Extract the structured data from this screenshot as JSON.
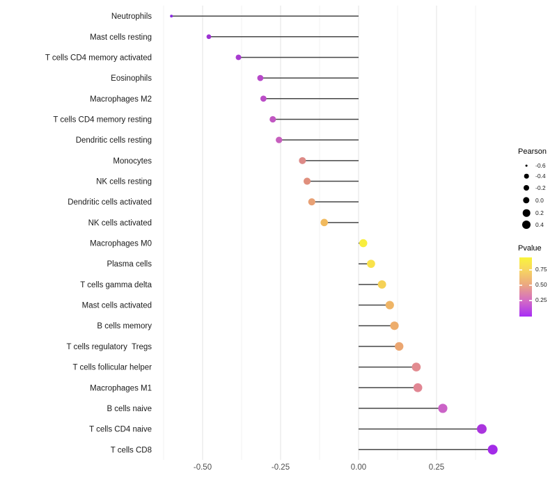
{
  "chart_data": {
    "type": "scatter",
    "subtype": "lollipop",
    "title": "",
    "xlabel": "",
    "ylabel": "",
    "xlim": [
      -0.655,
      0.455
    ],
    "x_ticks": [
      -0.5,
      -0.25,
      0.0,
      0.25
    ],
    "x_tick_labels": [
      "-0.50",
      "-0.25",
      "0.00",
      "0.25"
    ],
    "minor_gridlines": [
      -0.625,
      -0.375,
      -0.125,
      0.125,
      0.375
    ],
    "grid": "vertical-only",
    "stem_baseline": 0.0,
    "points": [
      {
        "label": "Neutrophils",
        "pearson": -0.6,
        "color": "#8a2be0"
      },
      {
        "label": "Mast cells resting",
        "pearson": -0.48,
        "color": "#9c33d2"
      },
      {
        "label": "T cells CD4 memory activated",
        "pearson": -0.385,
        "color": "#a83bd0"
      },
      {
        "label": "Eosinophils",
        "pearson": -0.315,
        "color": "#b748c9"
      },
      {
        "label": "Macrophages M2",
        "pearson": -0.305,
        "color": "#bb4dc7"
      },
      {
        "label": "T cells CD4 memory resting",
        "pearson": -0.275,
        "color": "#c157c2"
      },
      {
        "label": "Dendritic cells resting",
        "pearson": -0.255,
        "color": "#c75fbe"
      },
      {
        "label": "Monocytes",
        "pearson": -0.18,
        "color": "#dd8a87"
      },
      {
        "label": "NK cells resting",
        "pearson": -0.165,
        "color": "#e08f7d"
      },
      {
        "label": "Dendritic cells activated",
        "pearson": -0.15,
        "color": "#e8a175"
      },
      {
        "label": "NK cells activated",
        "pearson": -0.11,
        "color": "#f1ba5e"
      },
      {
        "label": "Macrophages M0",
        "pearson": 0.015,
        "color": "#f8ee3e"
      },
      {
        "label": "Plasma cells",
        "pearson": 0.04,
        "color": "#f9e24b"
      },
      {
        "label": "T cells gamma delta",
        "pearson": 0.075,
        "color": "#f5d156"
      },
      {
        "label": "Mast cells activated",
        "pearson": 0.1,
        "color": "#efb566"
      },
      {
        "label": "B cells memory",
        "pearson": 0.115,
        "color": "#edad6c"
      },
      {
        "label": "T cells regulatory  Tregs",
        "pearson": 0.13,
        "color": "#eba671"
      },
      {
        "label": "T cells follicular helper",
        "pearson": 0.185,
        "color": "#e28b90"
      },
      {
        "label": "Macrophages M1",
        "pearson": 0.19,
        "color": "#e18693"
      },
      {
        "label": "B cells naive",
        "pearson": 0.27,
        "color": "#cb63c7"
      },
      {
        "label": "T cells CD4 naive",
        "pearson": 0.395,
        "color": "#aa35de"
      },
      {
        "label": "T cells CD8",
        "pearson": 0.43,
        "color": "#a32be8"
      }
    ],
    "legend_size": {
      "title": "Pearson",
      "entries": [
        "-0.6",
        "-0.4",
        "-0.2",
        "0.0",
        "0.2",
        "0.4"
      ]
    },
    "legend_color": {
      "title": "Pvalue",
      "tick_labels": [
        "0.75",
        "0.50",
        "0.25"
      ],
      "gradient_stops": [
        "#f9f43b",
        "#f7d75f",
        "#ecaa7e",
        "#d56ec2",
        "#a72df5"
      ],
      "range": [
        0,
        0.95
      ]
    },
    "colors": {
      "stem": "#454545",
      "major_grid": "#e3e3e3",
      "minor_grid": "#f0f0f0",
      "axis_text": "#4d4d4d",
      "y_label_text": "#1a1a1a",
      "legend_dot": "#000000"
    }
  }
}
